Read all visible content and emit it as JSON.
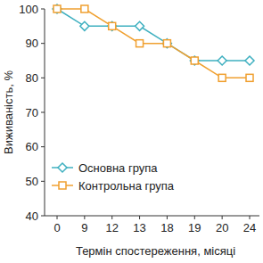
{
  "chart_data": {
    "type": "line",
    "x_label": "Термін спостереження, місяці",
    "y_label": "Виживаність, %",
    "categories": [
      "0",
      "9",
      "12",
      "13",
      "18",
      "19",
      "20",
      "24"
    ],
    "series": [
      {
        "name": "Основна група",
        "color": "#3fb0c0",
        "marker": "diamond",
        "values": [
          100,
          95,
          95,
          95,
          90,
          85,
          85,
          85
        ]
      },
      {
        "name": "Контрольна група",
        "color": "#f0a030",
        "marker": "square",
        "values": [
          100,
          100,
          95,
          90,
          90,
          85,
          80,
          80
        ]
      }
    ],
    "ylim": [
      40,
      100
    ],
    "yticks": [
      40,
      50,
      60,
      70,
      80,
      90,
      100
    ],
    "grid": false,
    "legend": "lower left"
  }
}
